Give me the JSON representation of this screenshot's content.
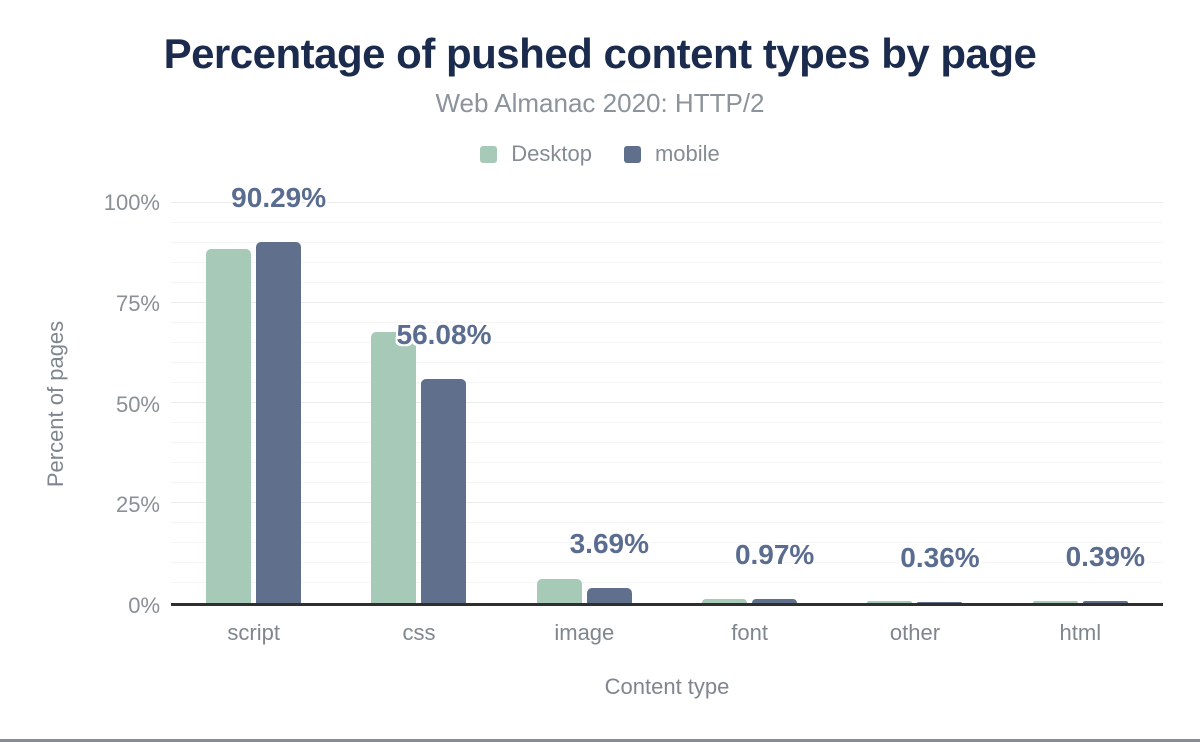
{
  "header": {
    "title": "Percentage of pushed content types by page",
    "subtitle": "Web Almanac 2020: HTTP/2"
  },
  "chart_data": {
    "type": "bar",
    "title": "Percentage of pushed content types by page",
    "subtitle": "Web Almanac 2020: HTTP/2",
    "categories": [
      "script",
      "css",
      "image",
      "font",
      "other",
      "html"
    ],
    "series": [
      {
        "name": "Desktop",
        "color": "#a7c9b8",
        "values": [
          88.6,
          67.7,
          6.0,
          0.9,
          0.6,
          0.6
        ]
      },
      {
        "name": "mobile",
        "color": "#606f8b",
        "values": [
          90.29,
          56.08,
          3.69,
          0.97,
          0.36,
          0.39
        ]
      }
    ],
    "data_labels": [
      "90.29%",
      "56.08%",
      "3.69%",
      "0.97%",
      "0.36%",
      "0.39%"
    ],
    "data_labels_series": "mobile",
    "xlabel": "Content type",
    "ylabel": "Percent of pages",
    "ylim": [
      0,
      100
    ],
    "ytick_labels": [
      "0%",
      "25%",
      "50%",
      "75%",
      "100%"
    ],
    "ytick_values": [
      0,
      25,
      50,
      75,
      100
    ],
    "grid_minor_step_percent": 5,
    "grid_on": true,
    "legend_position": "top"
  },
  "colors": {
    "title_text": "#1b2b4d",
    "subtitle_text": "#8d939b",
    "desktop_bar": "#a7c9b8",
    "mobile_bar": "#606f8b",
    "data_label_text": "#5a6c90",
    "axis_line": "#2f2f2f",
    "tick_text": "#8a9096",
    "grid_minor": "#f5f5f5",
    "grid_major": "#ebebeb",
    "bottom_edge": "#878d94"
  }
}
